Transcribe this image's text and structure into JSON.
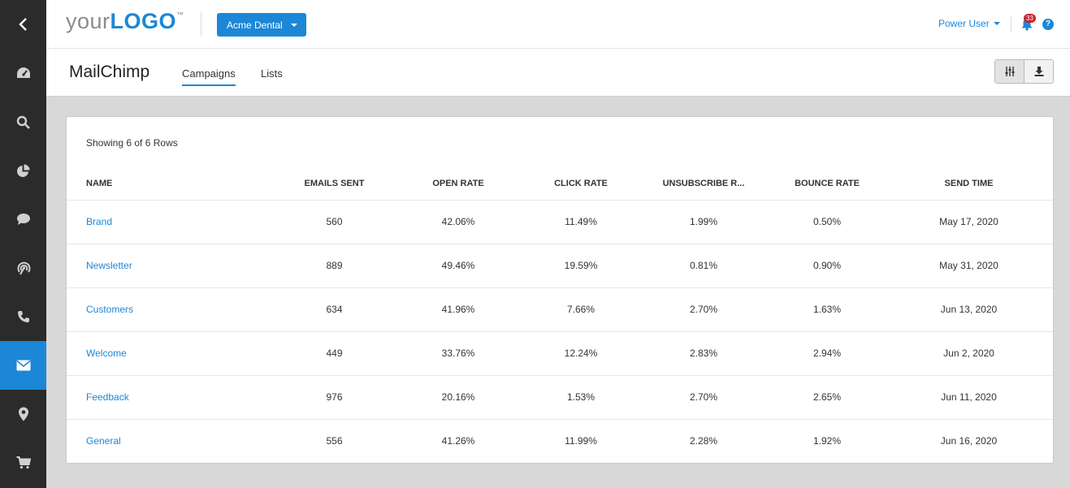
{
  "header": {
    "logo_prefix": "your",
    "logo_brand": "LOGO",
    "logo_tm": "™",
    "account": "Acme Dental",
    "user": "Power User",
    "notification_count": "33",
    "help_label": "?"
  },
  "sidebar": {
    "items": [
      {
        "icon": "chevron-left-icon"
      },
      {
        "icon": "dashboard-icon"
      },
      {
        "icon": "search-icon"
      },
      {
        "icon": "pie-chart-icon"
      },
      {
        "icon": "chat-icon"
      },
      {
        "icon": "signal-icon"
      },
      {
        "icon": "phone-icon"
      },
      {
        "icon": "email-icon",
        "active": true
      },
      {
        "icon": "location-icon"
      },
      {
        "icon": "cart-icon"
      }
    ],
    "active_color": "#1b87d6"
  },
  "page": {
    "title": "MailChimp",
    "tabs": [
      "Campaigns",
      "Lists"
    ],
    "active_tab": "Campaigns"
  },
  "table": {
    "row_count_text": "Showing 6 of 6 Rows",
    "columns": [
      "NAME",
      "EMAILS SENT",
      "OPEN RATE",
      "CLICK RATE",
      "UNSUBSCRIBE R...",
      "BOUNCE RATE",
      "SEND TIME"
    ],
    "rows": [
      [
        "Brand",
        "560",
        "42.06%",
        "11.49%",
        "1.99%",
        "0.50%",
        "May 17, 2020"
      ],
      [
        "Newsletter",
        "889",
        "49.46%",
        "19.59%",
        "0.81%",
        "0.90%",
        "May 31, 2020"
      ],
      [
        "Customers",
        "634",
        "41.96%",
        "7.66%",
        "2.70%",
        "1.63%",
        "Jun 13, 2020"
      ],
      [
        "Welcome",
        "449",
        "33.76%",
        "12.24%",
        "2.83%",
        "2.94%",
        "Jun 2, 2020"
      ],
      [
        "Feedback",
        "976",
        "20.16%",
        "1.53%",
        "2.70%",
        "2.65%",
        "Jun 11, 2020"
      ],
      [
        "General",
        "556",
        "41.26%",
        "11.99%",
        "2.28%",
        "1.92%",
        "Jun 16, 2020"
      ]
    ]
  },
  "colors": {
    "accent": "#1b87d6",
    "sidebar_bg": "#2b2b2b",
    "badge": "#c9232b"
  }
}
